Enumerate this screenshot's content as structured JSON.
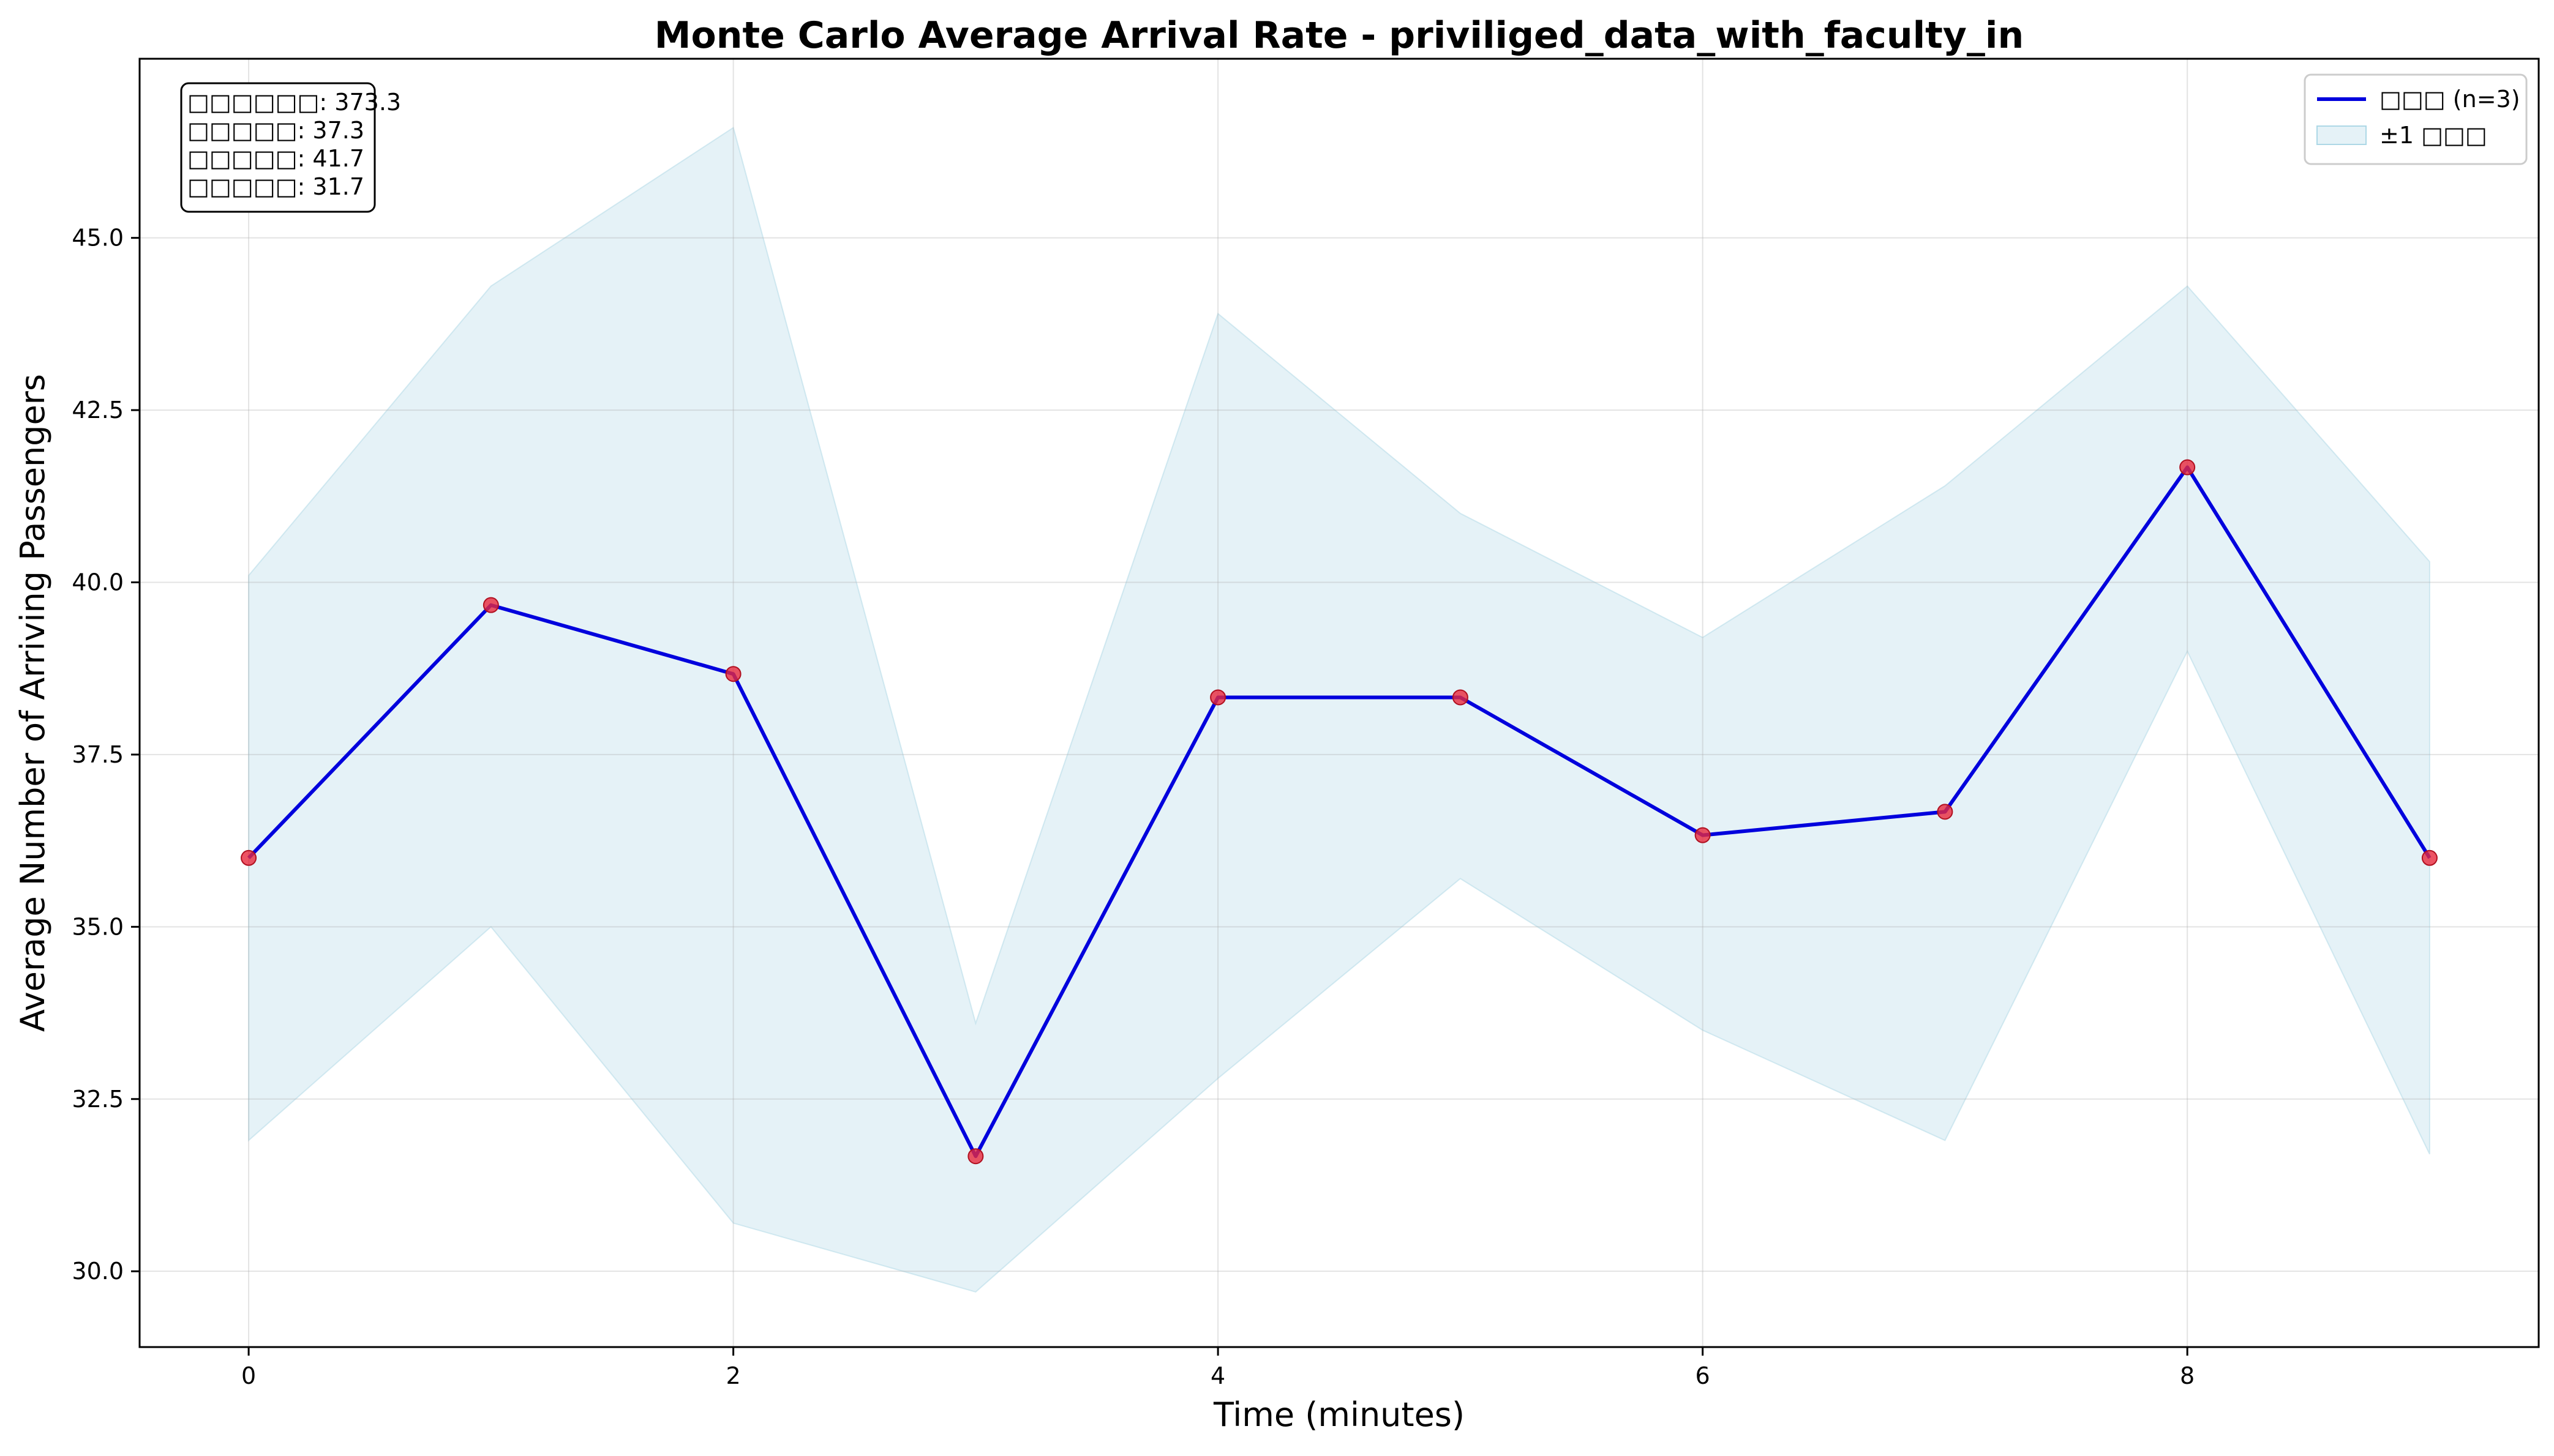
{
  "chart_data": {
    "type": "line",
    "title": "Monte Carlo Average Arrival Rate - priviliged_data_with_faculty_in",
    "xlabel": "Time (minutes)",
    "ylabel": "Average Number of Arriving Passengers",
    "xlim": [
      -0.45,
      9.45
    ],
    "ylim": [
      28.9,
      47.6
    ],
    "xticks": [
      0,
      2,
      4,
      6,
      8
    ],
    "xtick_labels": [
      "0",
      "2",
      "4",
      "6",
      "8"
    ],
    "yticks": [
      30.0,
      32.5,
      35.0,
      37.5,
      40.0,
      42.5,
      45.0
    ],
    "ytick_labels": [
      "30.0",
      "32.5",
      "35.0",
      "37.5",
      "40.0",
      "42.5",
      "45.0"
    ],
    "grid": true,
    "legend_position": "top-right",
    "x": [
      0,
      1,
      2,
      3,
      4,
      5,
      6,
      7,
      8,
      9
    ],
    "series": [
      {
        "name": "□□□ (n=3)",
        "values": [
          36.0,
          39.67,
          38.67,
          31.67,
          38.33,
          38.33,
          36.33,
          36.67,
          41.67,
          36.0
        ],
        "color": "#0000dd",
        "marker_color": "#e8283c"
      }
    ],
    "band": {
      "name": "±1 □□□",
      "upper": [
        40.1,
        44.3,
        46.6,
        33.6,
        43.9,
        41.0,
        39.2,
        41.4,
        44.3,
        40.3
      ],
      "lower": [
        31.9,
        35.0,
        30.7,
        29.7,
        32.8,
        35.7,
        33.5,
        31.9,
        39.0,
        31.7
      ],
      "color": "#add8e6"
    },
    "annotation_lines": [
      "□□□□□□: 373.3",
      "□□□□□: 37.3",
      "□□□□□: 41.7",
      "□□□□□: 31.7"
    ]
  }
}
